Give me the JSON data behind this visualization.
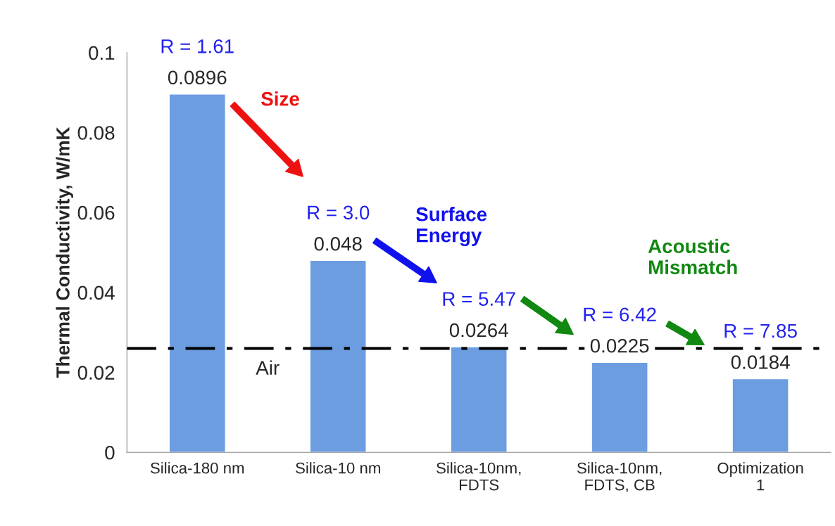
{
  "chart_data": {
    "type": "bar",
    "ylabel": "Thermal Conductivity, W/mK",
    "categories": [
      "Silica-180 nm",
      "Silica-10 nm",
      "Silica-10nm,\nFDTS",
      "Silica-10nm,\nFDTS, CB",
      "Optimization\n1"
    ],
    "values": [
      0.0896,
      0.048,
      0.0264,
      0.0225,
      0.0184
    ],
    "color": "#6b9de0",
    "ylim": [
      0,
      0.1
    ],
    "yticks": [
      0,
      0.02,
      0.04,
      0.06,
      0.08,
      0.1
    ],
    "data_labels": true,
    "grid": false,
    "ref_lines": [
      {
        "axis": "y",
        "value": 0.026,
        "label": "Air",
        "color": "#000000",
        "line_style": "dashdot"
      }
    ],
    "annotations": [
      "R = 1.61",
      "R = 3.0",
      "R = 5.47",
      "R = 6.42",
      "R = 7.85",
      "Size",
      "Surface\nEnergy",
      "Acoustic\nMismatch"
    ]
  }
}
